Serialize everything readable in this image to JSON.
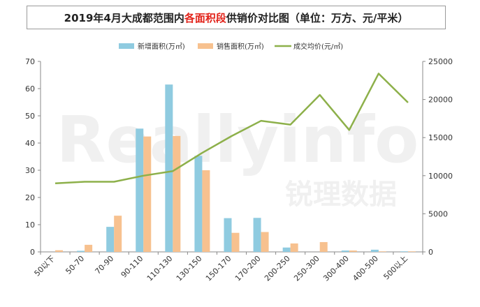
{
  "title": {
    "prefix": "2019年4月大成都范围内",
    "highlight": "各面积段",
    "suffix": "供销价对比图（单位：万方、元/平米）"
  },
  "watermark": {
    "latin": "Reallyinfo",
    "chinese": "锐理数据"
  },
  "colors": {
    "new_supply": "#8fcbe0",
    "sales": "#f7c18f",
    "price": "#8db04a",
    "title_highlight": "#e2231a"
  },
  "chart_data": {
    "type": "bar",
    "categories": [
      "50以下",
      "50-70",
      "70-90",
      "90-110",
      "110-130",
      "130-150",
      "150-170",
      "170-200",
      "200-250",
      "250-300",
      "300-400",
      "400-500",
      "500以上"
    ],
    "series": [
      {
        "name": "新增面积(万㎡)",
        "type": "bar",
        "axis": "left",
        "values": [
          0,
          0.4,
          9.2,
          45.3,
          61.5,
          35.3,
          12.4,
          12.5,
          1.6,
          0,
          0.5,
          0.8,
          0.2
        ]
      },
      {
        "name": "销售面积(万㎡)",
        "type": "bar",
        "axis": "left",
        "values": [
          0.6,
          2.6,
          13.3,
          42.4,
          42.6,
          30.0,
          7.0,
          7.3,
          3.1,
          3.6,
          0.5,
          0.2,
          0.2
        ]
      },
      {
        "name": "成交均价(元/㎡)",
        "type": "line",
        "axis": "right",
        "values": [
          9000,
          9200,
          9200,
          10000,
          10600,
          13000,
          15200,
          17200,
          16700,
          20600,
          16000,
          23400,
          19600
        ]
      }
    ],
    "y_left": {
      "min": 0,
      "max": 70,
      "ticks": [
        0,
        10,
        20,
        30,
        40,
        50,
        60,
        70
      ]
    },
    "y_right": {
      "min": 0,
      "max": 25000,
      "ticks": [
        0,
        5000,
        10000,
        15000,
        20000,
        25000
      ]
    },
    "grid": false,
    "legend_position": "top"
  }
}
